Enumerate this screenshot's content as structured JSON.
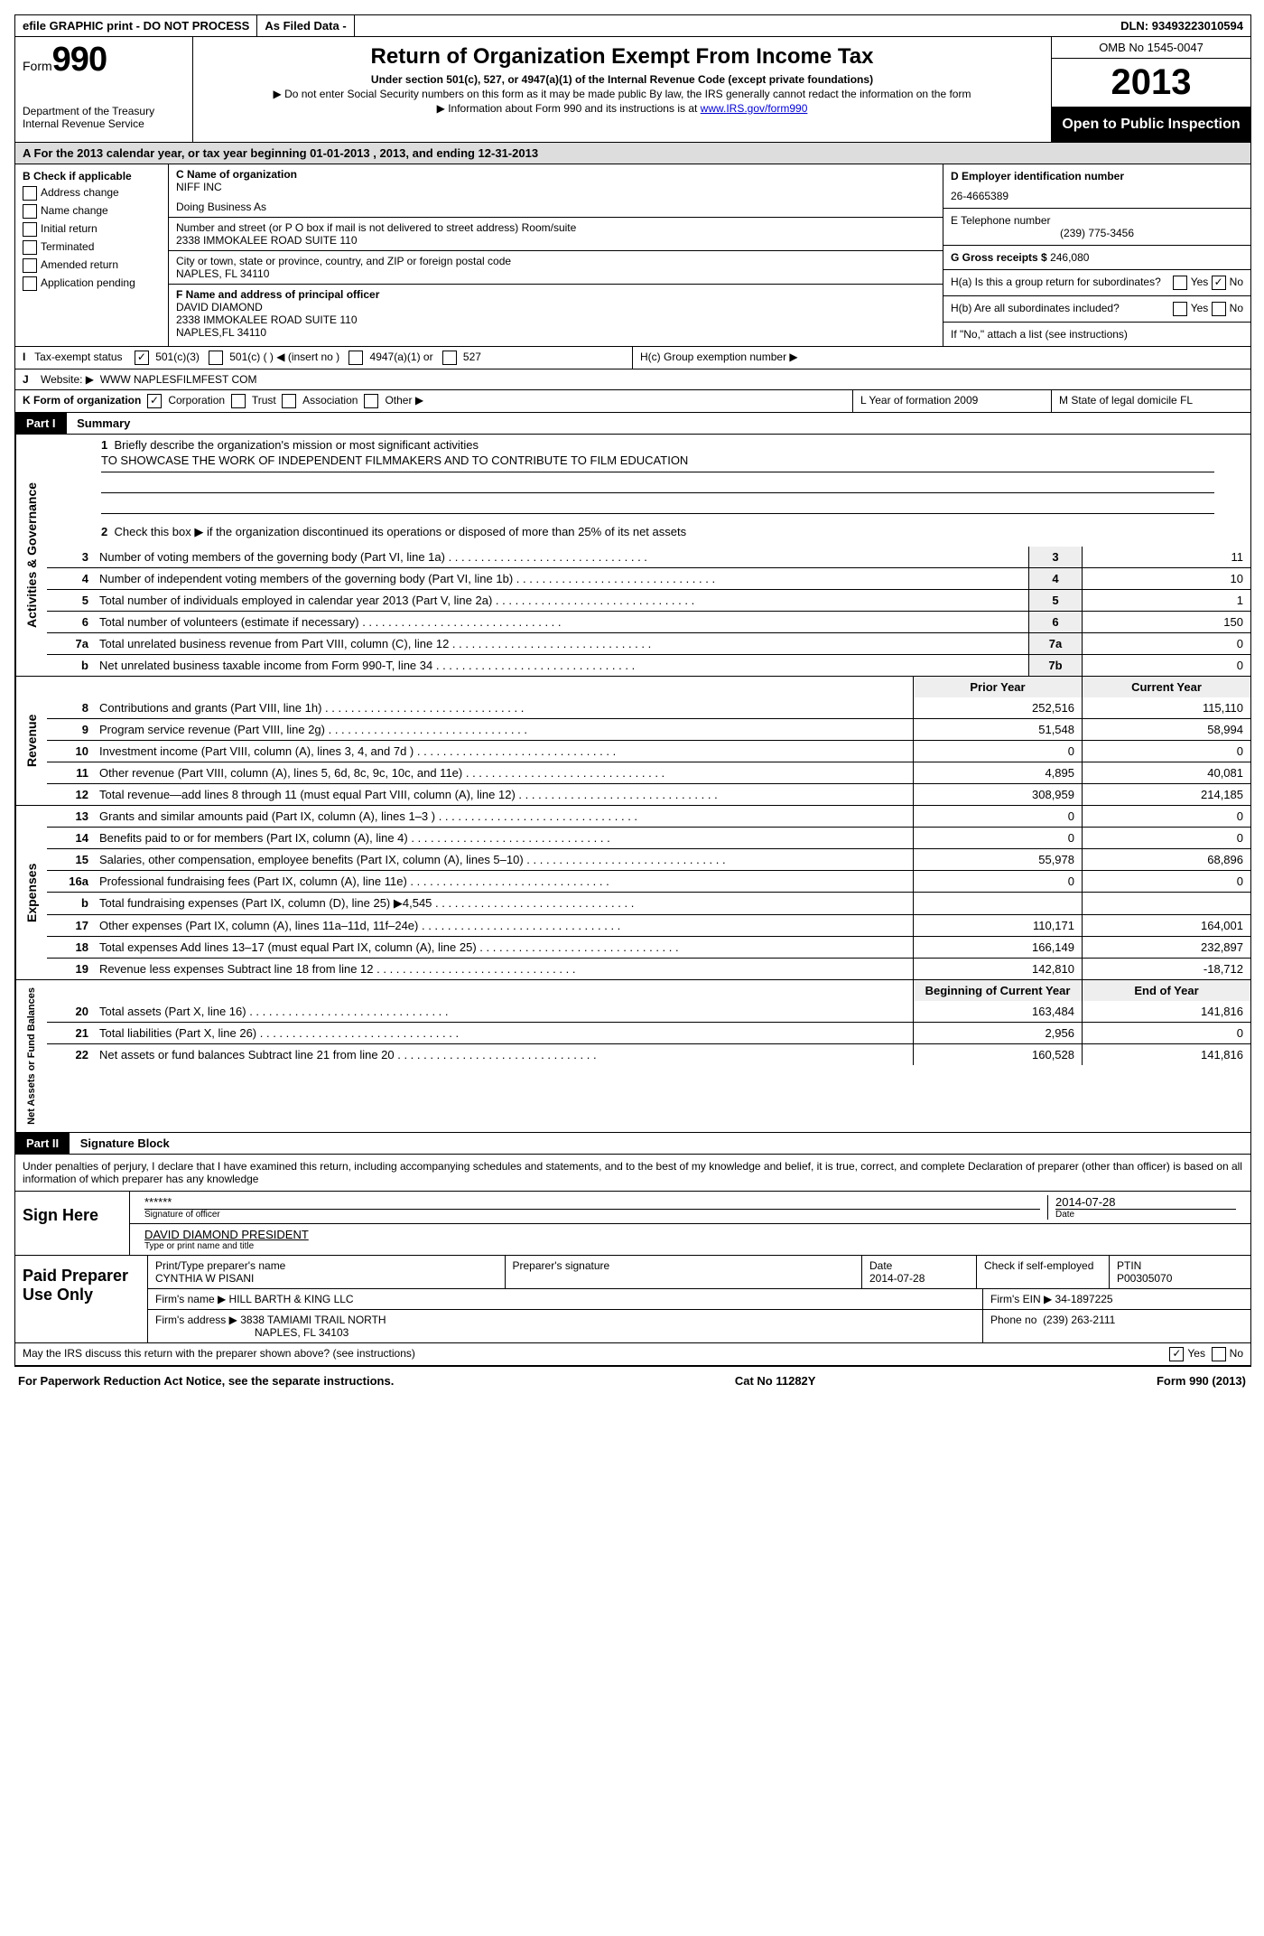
{
  "topbar": {
    "efile": "efile GRAPHIC print - DO NOT PROCESS",
    "asfiled": "As Filed Data -",
    "dln_label": "DLN:",
    "dln": "93493223010594"
  },
  "header": {
    "form_label": "Form",
    "form_no": "990",
    "dept1": "Department of the Treasury",
    "dept2": "Internal Revenue Service",
    "title": "Return of Organization Exempt From Income Tax",
    "sub1": "Under section 501(c), 527, or 4947(a)(1) of the Internal Revenue Code (except private foundations)",
    "sub2": "▶ Do not enter Social Security numbers on this form as it may be made public  By law, the IRS generally cannot redact the information on the form",
    "sub3_pre": "▶ Information about Form 990 and its instructions is at ",
    "sub3_link": "www.IRS.gov/form990",
    "omb": "OMB No  1545-0047",
    "year": "2013",
    "inspect": "Open to Public Inspection"
  },
  "rowA": "A  For the 2013 calendar year, or tax year beginning 01-01-2013    , 2013, and ending 12-31-2013",
  "colB": {
    "caption": "B  Check if applicable",
    "items": [
      "Address change",
      "Name change",
      "Initial return",
      "Terminated",
      "Amended return",
      "Application pending"
    ]
  },
  "colC": {
    "name_label": "C Name of organization",
    "name": "NIFF INC",
    "dba_label": "Doing Business As",
    "dba": "",
    "addr_label": "Number and street (or P O  box if mail is not delivered to street address)  Room/suite",
    "addr": "2338 IMMOKALEE ROAD SUITE 110",
    "city_label": "City or town, state or province, country, and ZIP or foreign postal code",
    "city": "NAPLES, FL  34110",
    "officer_label": "F  Name and address of principal officer",
    "officer_name": "DAVID DIAMOND",
    "officer_addr1": "2338 IMMOKALEE ROAD SUITE 110",
    "officer_addr2": "NAPLES,FL 34110"
  },
  "colDE": {
    "d_label": "D Employer identification number",
    "ein": "26-4665389",
    "e_label": "E Telephone number",
    "phone": "(239) 775-3456",
    "g_label": "G Gross receipts $",
    "g_val": "246,080",
    "ha": "H(a)  Is this a group return for subordinates?",
    "hb": "H(b)  Are all subordinates included?",
    "hb2": "If \"No,\" attach a list  (see instructions)",
    "hc": "H(c)   Group exemption number ▶",
    "yes": "Yes",
    "no": "No"
  },
  "lineI": {
    "label": "I",
    "text": "Tax-exempt status",
    "o1": "501(c)(3)",
    "o2": "501(c) (   ) ◀ (insert no )",
    "o3": "4947(a)(1) or",
    "o4": "527"
  },
  "lineJ": {
    "label": "J",
    "text": "Website: ▶",
    "val": "WWW NAPLESFILMFEST COM"
  },
  "lineK": {
    "label": "K Form of organization",
    "o1": "Corporation",
    "o2": "Trust",
    "o3": "Association",
    "o4": "Other ▶",
    "l": "L Year of formation  2009",
    "m": "M State of legal domicile  FL"
  },
  "part1": {
    "header": "Part I",
    "title": "Summary"
  },
  "mission": {
    "q1_num": "1",
    "q1": "Briefly describe the organization's mission or most significant activities",
    "q1_val": "TO SHOWCASE THE WORK OF INDEPENDENT FILMMAKERS AND TO CONTRIBUTE TO FILM EDUCATION",
    "q2_num": "2",
    "q2": "Check this box ▶     if the organization discontinued its operations or disposed of more than 25% of its net assets"
  },
  "gov_label": "Activities & Governance",
  "gov": [
    {
      "n": "3",
      "d": "Number of voting members of the governing body (Part VI, line 1a)",
      "k": "3",
      "v": "11"
    },
    {
      "n": "4",
      "d": "Number of independent voting members of the governing body (Part VI, line 1b)",
      "k": "4",
      "v": "10"
    },
    {
      "n": "5",
      "d": "Total number of individuals employed in calendar year 2013 (Part V, line 2a)",
      "k": "5",
      "v": "1"
    },
    {
      "n": "6",
      "d": "Total number of volunteers (estimate if necessary)",
      "k": "6",
      "v": "150"
    },
    {
      "n": "7a",
      "d": "Total unrelated business revenue from Part VIII, column (C), line 12",
      "k": "7a",
      "v": "0"
    },
    {
      "n": "b",
      "d": "Net unrelated business taxable income from Form 990-T, line 34",
      "k": "7b",
      "v": "0"
    }
  ],
  "rev_label": "Revenue",
  "col_prior": "Prior Year",
  "col_curr": "Current Year",
  "rev": [
    {
      "n": "8",
      "d": "Contributions and grants (Part VIII, line 1h)",
      "p": "252,516",
      "c": "115,110"
    },
    {
      "n": "9",
      "d": "Program service revenue (Part VIII, line 2g)",
      "p": "51,548",
      "c": "58,994"
    },
    {
      "n": "10",
      "d": "Investment income (Part VIII, column (A), lines 3, 4, and 7d )",
      "p": "0",
      "c": "0"
    },
    {
      "n": "11",
      "d": "Other revenue (Part VIII, column (A), lines 5, 6d, 8c, 9c, 10c, and 11e)",
      "p": "4,895",
      "c": "40,081"
    },
    {
      "n": "12",
      "d": "Total revenue—add lines 8 through 11 (must equal Part VIII, column (A), line 12)",
      "p": "308,959",
      "c": "214,185"
    }
  ],
  "exp_label": "Expenses",
  "exp": [
    {
      "n": "13",
      "d": "Grants and similar amounts paid (Part IX, column (A), lines 1–3 )",
      "p": "0",
      "c": "0"
    },
    {
      "n": "14",
      "d": "Benefits paid to or for members (Part IX, column (A), line 4)",
      "p": "0",
      "c": "0"
    },
    {
      "n": "15",
      "d": "Salaries, other compensation, employee benefits (Part IX, column (A), lines 5–10)",
      "p": "55,978",
      "c": "68,896"
    },
    {
      "n": "16a",
      "d": "Professional fundraising fees (Part IX, column (A), line 11e)",
      "p": "0",
      "c": "0"
    },
    {
      "n": "b",
      "d": "Total fundraising expenses (Part IX, column (D), line 25) ▶4,545",
      "p": "",
      "c": ""
    },
    {
      "n": "17",
      "d": "Other expenses (Part IX, column (A), lines 11a–11d, 11f–24e)",
      "p": "110,171",
      "c": "164,001"
    },
    {
      "n": "18",
      "d": "Total expenses  Add lines 13–17 (must equal Part IX, column (A), line 25)",
      "p": "166,149",
      "c": "232,897"
    },
    {
      "n": "19",
      "d": "Revenue less expenses  Subtract line 18 from line 12",
      "p": "142,810",
      "c": "-18,712"
    }
  ],
  "na_label": "Net Assets or Fund Balances",
  "col_boy": "Beginning of Current Year",
  "col_eoy": "End of Year",
  "na": [
    {
      "n": "20",
      "d": "Total assets (Part X, line 16)",
      "p": "163,484",
      "c": "141,816"
    },
    {
      "n": "21",
      "d": "Total liabilities (Part X, line 26)",
      "p": "2,956",
      "c": "0"
    },
    {
      "n": "22",
      "d": "Net assets or fund balances  Subtract line 21 from line 20",
      "p": "160,528",
      "c": "141,816"
    }
  ],
  "part2": {
    "header": "Part II",
    "title": "Signature Block"
  },
  "perjury": "Under penalties of perjury, I declare that I have examined this return, including accompanying schedules and statements, and to the best of my knowledge and belief, it is true, correct, and complete  Declaration of preparer (other than officer) is based on all information of which preparer has any knowledge",
  "sign": {
    "label": "Sign Here",
    "sig_val": "******",
    "sig_lab": "Signature of officer",
    "date": "2014-07-28",
    "date_lab": "Date",
    "name": "DAVID DIAMOND PRESIDENT",
    "name_lab": "Type or print name and title"
  },
  "paid": {
    "label": "Paid Preparer Use Only",
    "h1": "Print/Type preparer's name",
    "v1": "CYNTHIA W PISANI",
    "h2": "Preparer's signature",
    "v2": "",
    "h3": "Date",
    "v3": "2014-07-28",
    "h4": "Check      if self-employed",
    "h5": "PTIN",
    "v5": "P00305070",
    "firm_label": "Firm's name    ▶",
    "firm": "HILL BARTH & KING LLC",
    "ein_label": "Firm's EIN ▶",
    "ein": "34-1897225",
    "addr_label": "Firm's address ▶",
    "addr1": "3838 TAMIAMI TRAIL NORTH",
    "addr2": "NAPLES, FL  34103",
    "phone_label": "Phone no",
    "phone": "(239) 263-2111"
  },
  "discuss": {
    "q": "May the IRS discuss this return with the preparer shown above? (see instructions)",
    "yes": "Yes",
    "no": "No"
  },
  "footer": {
    "l": "For Paperwork Reduction Act Notice, see the separate instructions.",
    "c": "Cat  No  11282Y",
    "r": "Form 990 (2013)"
  }
}
